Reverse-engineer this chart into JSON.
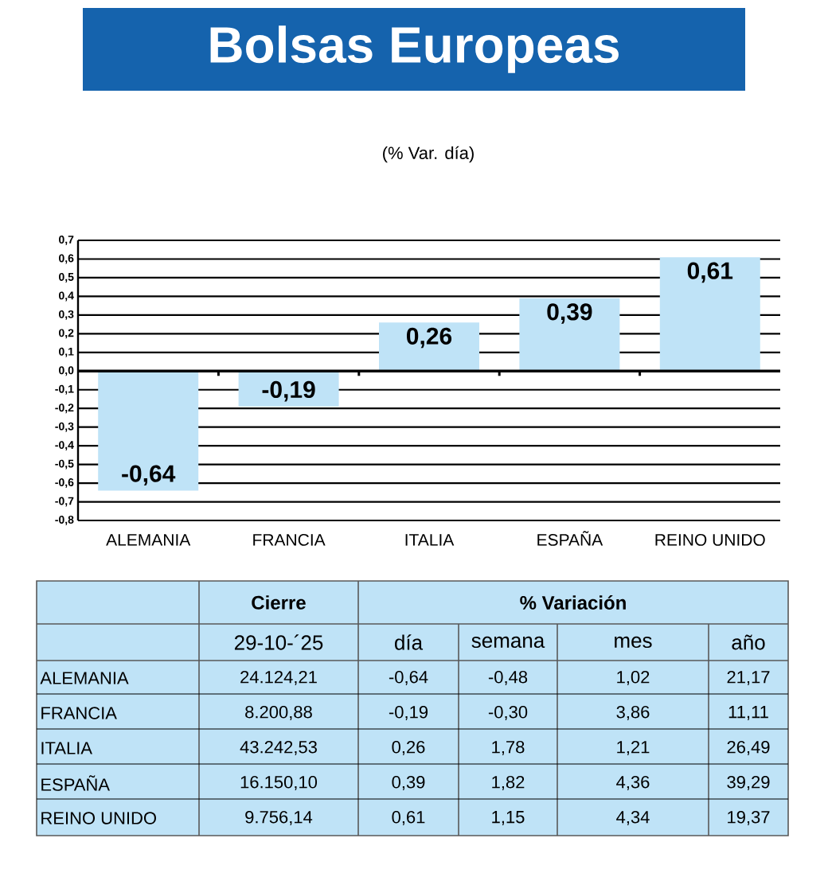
{
  "chart_data": [
    {
      "type": "bar",
      "title": "Bolsas Europeas",
      "subtitle": "(% Var. día)",
      "categories": [
        "ALEMANIA",
        "FRANCIA",
        "ITALIA",
        "ESPAÑA",
        "REINO UNIDO"
      ],
      "values": [
        -0.64,
        -0.19,
        0.26,
        0.39,
        0.61
      ],
      "value_labels": [
        "-0,64",
        "-0,19",
        "0,26",
        "0,39",
        "0,61"
      ],
      "color": "#bfe3f7",
      "grid": "y",
      "ylim": [
        -0.8,
        0.7
      ],
      "yticks": [
        {
          "value": 0.7,
          "label": "0,7"
        },
        {
          "value": 0.6,
          "label": "0,6"
        },
        {
          "value": 0.5,
          "label": "0,5"
        },
        {
          "value": 0.4,
          "label": "0,4"
        },
        {
          "value": 0.3,
          "label": "0,3"
        },
        {
          "value": 0.2,
          "label": "0,2"
        },
        {
          "value": 0.1,
          "label": "0,1"
        },
        {
          "value": 0,
          "label": "0,0"
        },
        {
          "value": -0.1,
          "label": "-0,1"
        },
        {
          "value": -0.2,
          "label": "-0,2"
        },
        {
          "value": -0.3,
          "label": "-0,3"
        },
        {
          "value": -0.4,
          "label": "-0,4"
        },
        {
          "value": -0.5,
          "label": "-0,5"
        },
        {
          "value": -0.6,
          "label": "-0,6"
        },
        {
          "value": -0.7,
          "label": "-0,7"
        },
        {
          "value": -0.8,
          "label": "-0,8"
        }
      ]
    },
    {
      "type": "other",
      "color": "#bfe3f7",
      "annotations": [
        "Cierre",
        "% Variación"
      ],
      "categories": [
        "29-10-´25",
        "día",
        "semana",
        "mes",
        "año"
      ],
      "y_categories": [
        "ALEMANIA",
        "FRANCIA",
        "ITALIA",
        "ESPAÑA",
        "REINO UNIDO"
      ],
      "cell_labels": [
        [
          "24.124,21",
          "-0,64",
          "-0,48",
          "1,02",
          "21,17"
        ],
        [
          "8.200,88",
          "-0,19",
          "-0,30",
          "3,86",
          "11,11"
        ],
        [
          "43.242,53",
          "0,26",
          "1,78",
          "1,21",
          "26,49"
        ],
        [
          "16.150,10",
          "0,39",
          "1,82",
          "4,36",
          "39,29"
        ],
        [
          "9.756,14",
          "0,61",
          "1,15",
          "4,34",
          "19,37"
        ]
      ]
    }
  ]
}
